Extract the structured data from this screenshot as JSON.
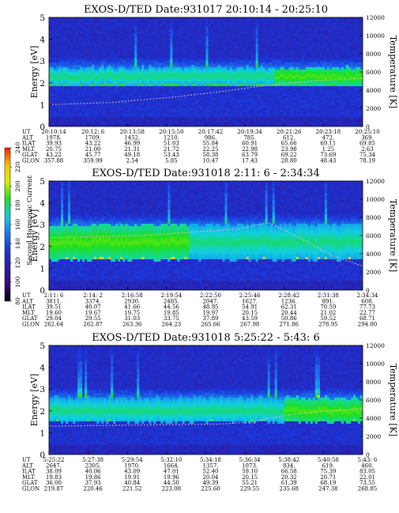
{
  "chart_data": {
    "type": "heatmap",
    "colorbar": {
      "label": "Second Harmonic Current",
      "ticks": [
        "80",
        "100",
        "120",
        "140",
        "160",
        "180",
        "200",
        "220",
        "240"
      ],
      "range": [
        80,
        240
      ],
      "colors": [
        "#000000",
        "#3a0a78",
        "#2a1ea8",
        "#1c36d8",
        "#1a7cf0",
        "#10d0e0",
        "#1ee01e",
        "#d8f000",
        "#f8c000",
        "#ff2000"
      ]
    },
    "panels": [
      {
        "title": "EXOS-D/TED   Date:931017  20:10:14 - 20:25:10",
        "ylabel": "Energy [eV]",
        "ylabel_right": "Temperature [K]",
        "ylim": [
          0,
          5
        ],
        "y_ticks": [
          "0",
          "1",
          "2",
          "3",
          "4",
          "5"
        ],
        "y2lim": [
          0,
          12000
        ],
        "y2_ticks": [
          "0",
          "2000",
          "4000",
          "6000",
          "8000",
          "10000",
          "12000"
        ],
        "band": {
          "start": 1.9,
          "end": 2.7,
          "peak": 2.3
        },
        "bright_segment": [
          0.72,
          1.0
        ],
        "temperature_trace": [
          [
            0.0,
            1.0
          ],
          [
            0.2,
            1.1
          ],
          [
            0.4,
            1.35
          ],
          [
            0.55,
            1.6
          ],
          [
            0.7,
            1.9
          ],
          [
            0.85,
            2.1
          ],
          [
            1.0,
            2.2
          ]
        ],
        "orbit_rows": [
          "UT",
          "ALT",
          "ILAT",
          "MLT",
          "GLAT",
          "GLON"
        ],
        "orbit_cols": [
          [
            "20:10:14",
            "1978.",
            "39.93",
            "20.75",
            "43.22",
            "357.88"
          ],
          [
            "20:12: 6",
            "1709.",
            "43.22",
            "21.00",
            "45.77",
            "359.99"
          ],
          [
            "20:13:58",
            "1452.",
            "46.99",
            "21.31",
            "49.18",
            "2.54"
          ],
          [
            "20:15:50",
            "1210.",
            "51.03",
            "21.72",
            "53.43",
            "5.85"
          ],
          [
            "20:17:42",
            "986.",
            "55.84",
            "22.25",
            "58.38",
            "10.47"
          ],
          [
            "20:19:34",
            "785.",
            "60.91",
            "22.98",
            "63.79",
            "17.43"
          ],
          [
            "20:21:26",
            "612.",
            "65.66",
            "23.98",
            "69.22",
            "28.80"
          ],
          [
            "20:23:18",
            "472.",
            "69.11",
            "1.25",
            "73.69",
            "48.43"
          ],
          [
            "20:25:10",
            "369.",
            "69.85",
            "2.63",
            "75.34",
            "78.19"
          ]
        ]
      },
      {
        "title": "EXOS-D/TED   Date:931018  2:11: 6 - 2:34:34",
        "ylabel": "Energy [eV]",
        "ylabel_right": "Temperature [K]",
        "ylim": [
          0,
          5
        ],
        "y_ticks": [
          "0",
          "1",
          "2",
          "3",
          "4",
          "5"
        ],
        "y2lim": [
          0,
          12000
        ],
        "y2_ticks": [
          "0",
          "2000",
          "4000",
          "6000",
          "8000",
          "10000",
          "12000"
        ],
        "band": {
          "start": 1.4,
          "end": 3.0,
          "peak": 2.2
        },
        "bright_segment": [
          0.0,
          0.45
        ],
        "temperature_trace": [
          [
            0.0,
            2.4
          ],
          [
            0.3,
            2.5
          ],
          [
            0.6,
            2.8
          ],
          [
            0.7,
            3.1
          ],
          [
            0.8,
            2.4
          ],
          [
            0.9,
            1.6
          ],
          [
            1.0,
            1.1
          ]
        ],
        "orbit_rows": [
          "UT",
          "ALT",
          "ILAT",
          "MLT",
          "GLAT",
          "GLON"
        ],
        "orbit_cols": [
          [
            "2:11: 6",
            "3811.",
            "39.51",
            "19.60",
            "29.04",
            "262.64"
          ],
          [
            "2:14: 2",
            "3374.",
            "40.07",
            "19.67",
            "29.55",
            "262.87"
          ],
          [
            "2:16:58",
            "2930.",
            "41.66",
            "19.75",
            "31.03",
            "263.36"
          ],
          [
            "2:19:54",
            "2485.",
            "44.56",
            "19.85",
            "33.75",
            "264.23"
          ],
          [
            "2:22:50",
            "2047.",
            "48.95",
            "19.97",
            "37.89",
            "265.66"
          ],
          [
            "2:25:46",
            "1627.",
            "54.91",
            "20.15",
            "43.59",
            "267.98"
          ],
          [
            "2:28:42",
            "1236.",
            "62.31",
            "20.44",
            "50.86",
            "271.86"
          ],
          [
            "2:31:38",
            "891.",
            "70.59",
            "21.02",
            "59.52",
            "278.95"
          ],
          [
            "2:34:34",
            "608.",
            "77.73",
            "22.77",
            "68.71",
            "294.00"
          ]
        ]
      },
      {
        "title": "EXOS-D/TED   Date:931018  5:25:22 - 5:43: 6",
        "ylabel": "Energy [eV]",
        "ylabel_right": "Temperature [K]",
        "ylim": [
          0,
          5
        ],
        "y_ticks": [
          "0",
          "1",
          "2",
          "3",
          "4",
          "5"
        ],
        "y2lim": [
          0,
          12000
        ],
        "y2_ticks": [
          "0",
          "2000",
          "4000",
          "6000",
          "8000",
          "10000",
          "12000"
        ],
        "band": {
          "start": 1.5,
          "end": 2.6,
          "peak": 2.0
        },
        "bright_segment": [
          0.75,
          1.0
        ],
        "temperature_trace": [
          [
            0.0,
            1.3
          ],
          [
            0.3,
            1.35
          ],
          [
            0.55,
            1.4
          ],
          [
            0.65,
            1.5
          ],
          [
            0.72,
            1.7
          ],
          [
            0.8,
            1.9
          ],
          [
            1.0,
            2.1
          ]
        ],
        "orbit_rows": [
          "UT",
          "ALT",
          "ILAT",
          "MLT",
          "GLAT",
          "GLON"
        ],
        "orbit_cols": [
          [
            "5:25:22",
            "2647.",
            "38.09",
            "19.83",
            "36.00",
            "219.87"
          ],
          [
            "5:27:38",
            "2305.",
            "40.06",
            "19.86",
            "37.93",
            "220.46"
          ],
          [
            "5:29:54",
            "1970.",
            "43.09",
            "19.91",
            "40.84",
            "221.52"
          ],
          [
            "5:32:10",
            "1664.",
            "47.01",
            "19.96",
            "44.50",
            "223.08"
          ],
          [
            "5:34:18",
            "1357.",
            "52.40",
            "20.04",
            "49.39",
            "225.60"
          ],
          [
            "5:36:34",
            "1073.",
            "59.10",
            "20.15",
            "55.21",
            "229.55"
          ],
          [
            "5:38:42",
            "834.",
            "66.58",
            "20.32",
            "61.39",
            "235.68"
          ],
          [
            "5:40:58",
            "619.",
            "75.39",
            "20.71",
            "68.19",
            "247.38"
          ],
          [
            "5:43: 6",
            "460.",
            "83.05",
            "22.01",
            "73.55",
            "268.85"
          ]
        ]
      }
    ]
  }
}
